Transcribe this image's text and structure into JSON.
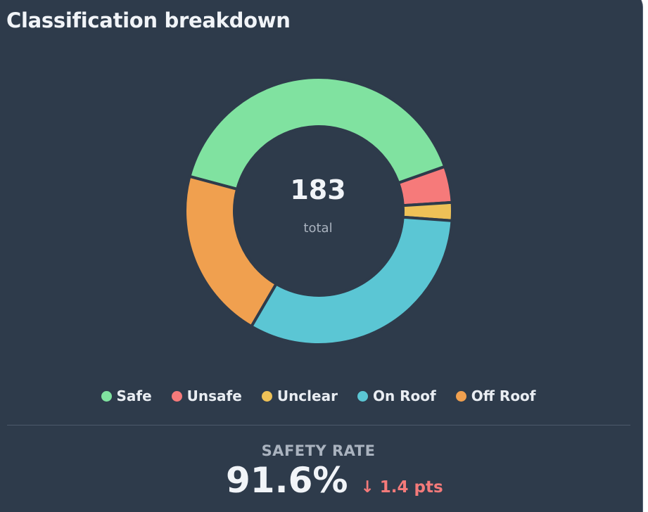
{
  "card": {
    "title": "Classification breakdown"
  },
  "center": {
    "total": "183",
    "label": "total"
  },
  "summary": {
    "label": "SAFETY RATE",
    "value": "91.6%",
    "delta": "↓ 1.4 pts",
    "delta_color": "#f47a7a"
  },
  "chart_data": {
    "type": "pie",
    "variant": "donut",
    "title": "Classification breakdown",
    "total": 183,
    "categories": [
      "Safe",
      "Unsafe",
      "Unclear",
      "On Roof",
      "Off Roof"
    ],
    "values": [
      74,
      8,
      4,
      59,
      38
    ],
    "colors": [
      "#80e2a0",
      "#f67a7a",
      "#eec157",
      "#5bc6d4",
      "#f0a04f"
    ],
    "legend": "bottom"
  }
}
